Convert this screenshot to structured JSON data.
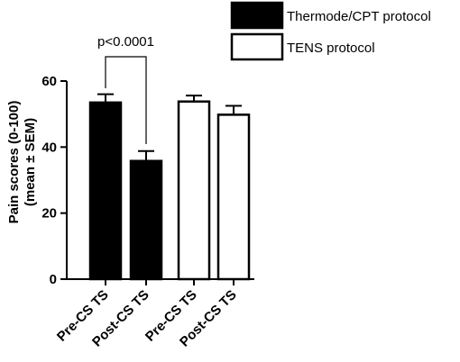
{
  "chart_data": {
    "type": "bar",
    "categories": [
      "Pre-CS TS",
      "Post-CS TS",
      "Pre-CS TS",
      "Post-CS TS"
    ],
    "series": [
      {
        "name": "Thermode/CPT protocol",
        "color": "#000000",
        "fill": "#000000",
        "points": [
          {
            "cat": 0,
            "value": 53.5,
            "sem": 2.5
          },
          {
            "cat": 1,
            "value": 35.8,
            "sem": 3.0
          }
        ]
      },
      {
        "name": "TENS protocol",
        "color": "#000000",
        "fill": "#ffffff",
        "points": [
          {
            "cat": 2,
            "value": 53.8,
            "sem": 1.8
          },
          {
            "cat": 3,
            "value": 49.8,
            "sem": 2.7
          }
        ]
      }
    ],
    "ylabel_line1": "Pain scores (0-100)",
    "ylabel_line2": "(mean ± SEM)",
    "ylim": [
      0,
      60
    ],
    "yticks": [
      0,
      20,
      40,
      60
    ],
    "annotation": {
      "text": "p<0.0001",
      "from_cat": 0,
      "to_cat": 1
    },
    "legend_position": "top-right",
    "grid": false
  }
}
